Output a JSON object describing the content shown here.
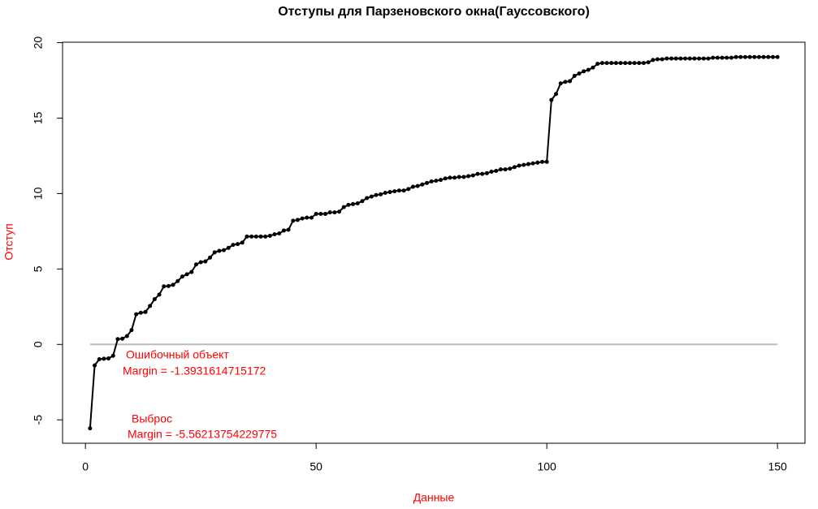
{
  "chart_data": {
    "type": "line",
    "title": "Отступы для Парзеновского окна(Гауссовского)",
    "x_label": "Данные",
    "y_label": "Отступ",
    "x": [
      1,
      2,
      3,
      4,
      5,
      6,
      7,
      8,
      9,
      10,
      11,
      12,
      13,
      14,
      15,
      16,
      17,
      18,
      19,
      20,
      21,
      22,
      23,
      24,
      25,
      26,
      27,
      28,
      29,
      30,
      31,
      32,
      33,
      34,
      35,
      36,
      37,
      38,
      39,
      40,
      41,
      42,
      43,
      44,
      45,
      46,
      47,
      48,
      49,
      50,
      51,
      52,
      53,
      54,
      55,
      56,
      57,
      58,
      59,
      60,
      61,
      62,
      63,
      64,
      65,
      66,
      67,
      68,
      69,
      70,
      71,
      72,
      73,
      74,
      75,
      76,
      77,
      78,
      79,
      80,
      81,
      82,
      83,
      84,
      85,
      86,
      87,
      88,
      89,
      90,
      91,
      92,
      93,
      94,
      95,
      96,
      97,
      98,
      99,
      100,
      101,
      102,
      103,
      104,
      105,
      106,
      107,
      108,
      109,
      110,
      111,
      112,
      113,
      114,
      115,
      116,
      117,
      118,
      119,
      120,
      121,
      122,
      123,
      124,
      125,
      126,
      127,
      128,
      129,
      130,
      131,
      132,
      133,
      134,
      135,
      136,
      137,
      138,
      139,
      140,
      141,
      142,
      143,
      144,
      145,
      146,
      147,
      148,
      149,
      150
    ],
    "series": [
      {
        "color": "#000000",
        "values": [
          -5.56213754229775,
          -1.3931614715172,
          -0.98,
          -0.95,
          -0.93,
          -0.75,
          0.35,
          0.38,
          0.55,
          0.95,
          2.0,
          2.1,
          2.15,
          2.55,
          3.0,
          3.3,
          3.85,
          3.87,
          3.95,
          4.2,
          4.5,
          4.65,
          4.8,
          5.3,
          5.45,
          5.5,
          5.75,
          6.1,
          6.2,
          6.25,
          6.4,
          6.6,
          6.65,
          6.75,
          7.15,
          7.15,
          7.15,
          7.15,
          7.15,
          7.2,
          7.3,
          7.35,
          7.55,
          7.6,
          8.2,
          8.25,
          8.35,
          8.4,
          8.4,
          8.65,
          8.65,
          8.65,
          8.75,
          8.75,
          8.8,
          9.1,
          9.25,
          9.3,
          9.35,
          9.5,
          9.7,
          9.8,
          9.9,
          9.95,
          10.05,
          10.1,
          10.15,
          10.2,
          10.2,
          10.3,
          10.45,
          10.5,
          10.6,
          10.7,
          10.8,
          10.85,
          10.9,
          11.0,
          11.05,
          11.05,
          11.1,
          11.1,
          11.15,
          11.2,
          11.3,
          11.3,
          11.35,
          11.45,
          11.5,
          11.6,
          11.6,
          11.65,
          11.75,
          11.85,
          11.9,
          11.95,
          12.0,
          12.05,
          12.1,
          12.1,
          16.2,
          16.6,
          17.3,
          17.4,
          17.45,
          17.8,
          17.95,
          18.1,
          18.2,
          18.35,
          18.6,
          18.65,
          18.65,
          18.65,
          18.65,
          18.65,
          18.65,
          18.65,
          18.65,
          18.65,
          18.65,
          18.7,
          18.85,
          18.9,
          18.9,
          18.95,
          18.95,
          18.95,
          18.95,
          18.95,
          18.95,
          18.95,
          18.95,
          18.95,
          18.95,
          19.0,
          19.0,
          19.0,
          19.0,
          19.0,
          19.05,
          19.05,
          19.05,
          19.05,
          19.05,
          19.05,
          19.05,
          19.05,
          19.05,
          19.05
        ]
      }
    ],
    "hline": {
      "value": 0,
      "color": "#bebebe"
    },
    "annotations": [
      {
        "lines": [
          "Ошибочный объект",
          "Margin = -1.3931614715172"
        ]
      },
      {
        "lines": [
          "Выброс",
          "Margin = -5.56213754229775"
        ]
      }
    ],
    "xlim": [
      -4.96,
      155.96
    ],
    "ylim": [
      -6.55,
      20.03
    ],
    "xticks": [
      0,
      50,
      100,
      150
    ],
    "yticks": [
      -5,
      0,
      5,
      10,
      15,
      20
    ]
  }
}
